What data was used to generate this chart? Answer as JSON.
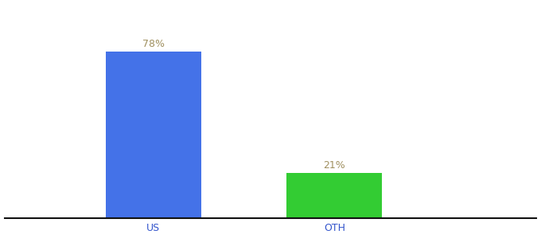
{
  "categories": [
    "US",
    "OTH"
  ],
  "values": [
    78,
    21
  ],
  "bar_colors": [
    "#4472e8",
    "#33cc33"
  ],
  "label_color": "#a09060",
  "labels": [
    "78%",
    "21%"
  ],
  "background_color": "#ffffff",
  "ylim": [
    0,
    100
  ],
  "bar_width": 0.18,
  "x_positions": [
    0.28,
    0.62
  ],
  "xlim": [
    0.0,
    1.0
  ],
  "xlabel_fontsize": 9,
  "label_fontsize": 9,
  "axis_line_color": "#111111",
  "tick_color": "#3355cc"
}
